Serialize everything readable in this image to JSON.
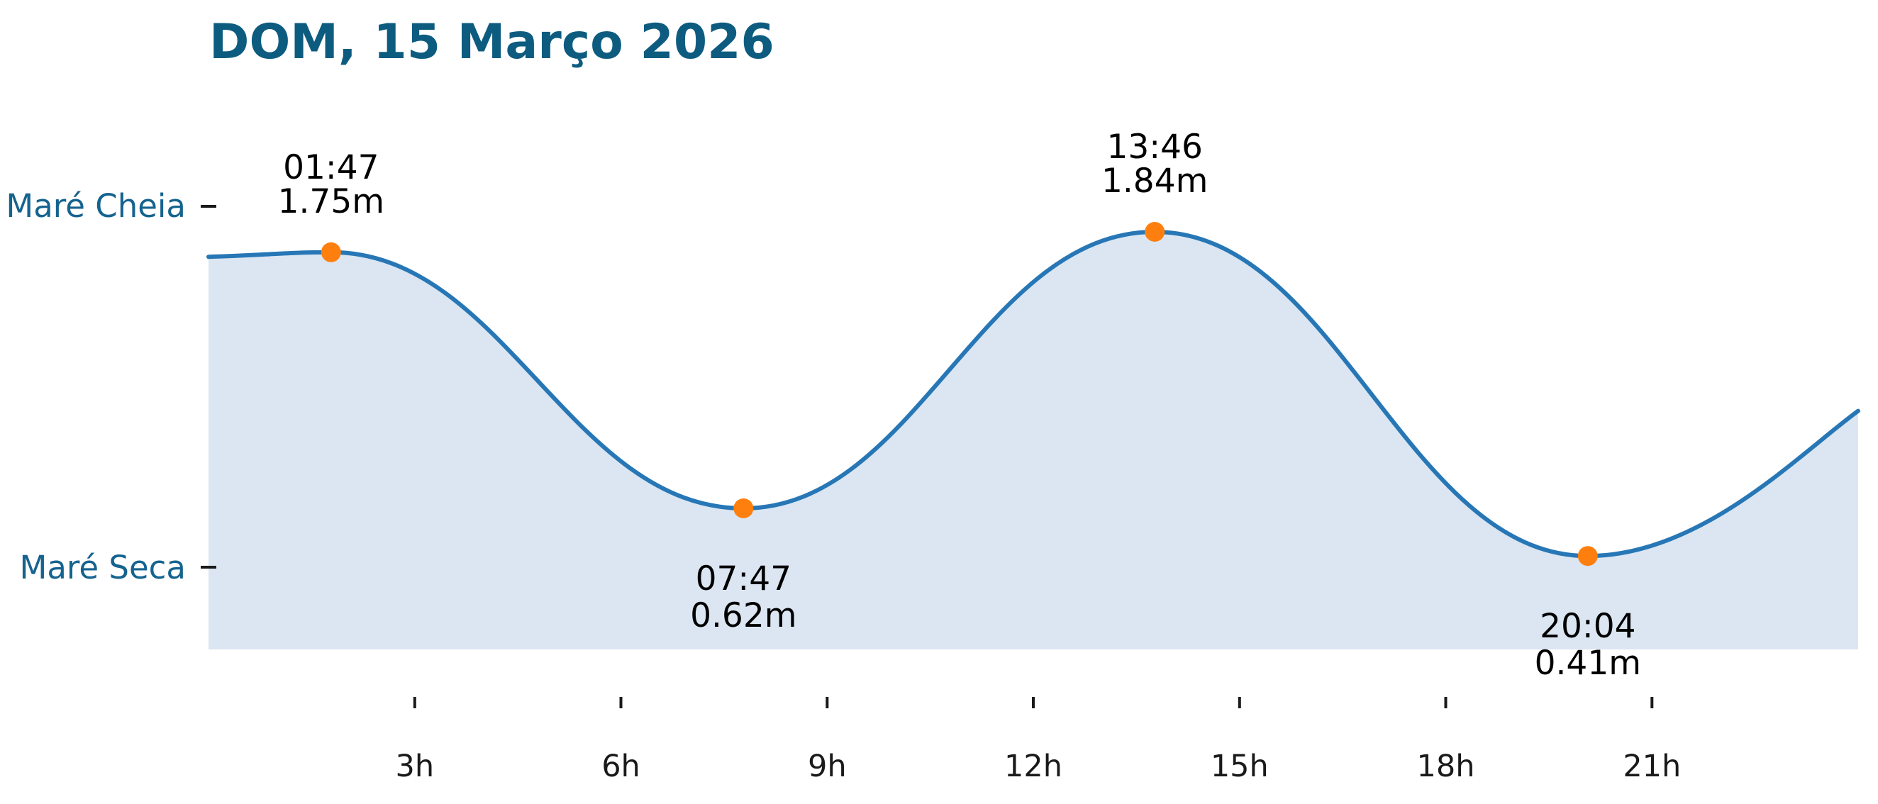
{
  "title": "DOM, 15 Março 2026",
  "y_axis": {
    "high_label": "Maré Cheia",
    "low_label": "Maré Seca"
  },
  "x_axis": {
    "tick_labels": [
      "3h",
      "6h",
      "9h",
      "12h",
      "15h",
      "18h",
      "21h"
    ],
    "tick_hours": [
      3,
      6,
      9,
      12,
      15,
      18,
      21
    ]
  },
  "chart_data": {
    "type": "line",
    "title": "DOM, 15 Março 2026",
    "x_unit": "hour_of_day",
    "x_range": [
      0,
      24
    ],
    "ylabel_high": "Maré Cheia",
    "ylabel_low": "Maré Seca",
    "grid": false,
    "legend": false,
    "events": [
      {
        "time": "01:47",
        "height_m": 1.75,
        "value_label": "1.75m",
        "kind": "high"
      },
      {
        "time": "07:47",
        "height_m": 0.62,
        "value_label": "0.62m",
        "kind": "low"
      },
      {
        "time": "13:46",
        "height_m": 1.84,
        "value_label": "1.84m",
        "kind": "high"
      },
      {
        "time": "20:04",
        "height_m": 0.41,
        "value_label": "0.41m",
        "kind": "low"
      }
    ],
    "curve_edge_estimates_m": {
      "at_0h": 1.73,
      "at_24h": 1.05
    },
    "colors": {
      "curve": "#2777b6",
      "fill": "#dbe6f2",
      "marker": "#ff7f0e",
      "title": "#0d5c80",
      "axis_label": "#15638f",
      "tick": "#1a1a1a",
      "annotation": "#000000"
    }
  }
}
